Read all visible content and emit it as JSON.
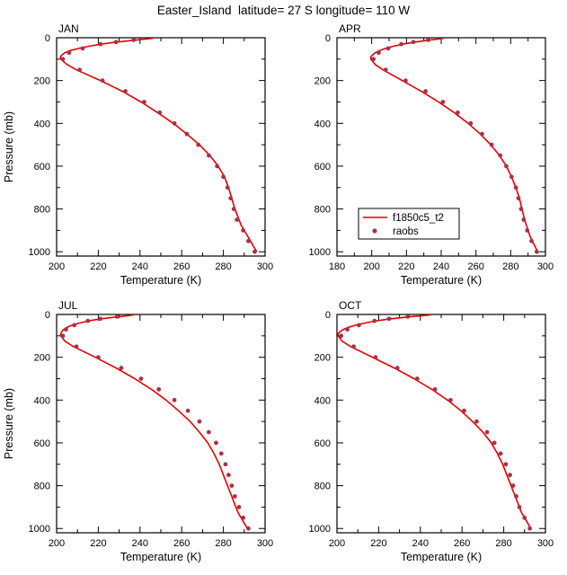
{
  "title": "Easter_Island  latitude= 27 S longitude= 110 W",
  "colors": {
    "model_line": "#e60000",
    "obs_dot": "#a8314e",
    "axis": "#000000",
    "background": "#ffffff"
  },
  "chart_data": {
    "type": "line",
    "title": "Easter_Island  latitude= 27 S longitude= 110 W",
    "legend": {
      "position": "inside-apr-panel",
      "entries": [
        {
          "type": "line",
          "label": "f1850c5_t2"
        },
        {
          "type": "marker",
          "label": "raobs"
        }
      ]
    },
    "panels": [
      {
        "id": "jan",
        "label": "JAN",
        "show_legend": false,
        "show_y_title": true,
        "x_axis": {
          "title": "Temperature (K)",
          "min": 200,
          "max": 300,
          "major_step": 20,
          "minor_step": 10
        },
        "y_axis": {
          "title": "Pressure (mb)",
          "min": 0,
          "max": 1020,
          "tick_max": 1000,
          "major_step": 200,
          "minor_step": 100
        },
        "model": {
          "name": "f1850c5_t2",
          "points": [
            [
              1000,
              296
            ],
            [
              975,
              294.5
            ],
            [
              950,
              293
            ],
            [
              925,
              291.5
            ],
            [
              900,
              290
            ],
            [
              875,
              288.5
            ],
            [
              850,
              287.5
            ],
            [
              800,
              285.5
            ],
            [
              750,
              284
            ],
            [
              700,
              282.5
            ],
            [
              650,
              280.5
            ],
            [
              600,
              277.5
            ],
            [
              550,
              273.5
            ],
            [
              500,
              268.5
            ],
            [
              450,
              262.5
            ],
            [
              400,
              256
            ],
            [
              350,
              248.5
            ],
            [
              300,
              240.5
            ],
            [
              250,
              231.5
            ],
            [
              200,
              221
            ],
            [
              150,
              209.5
            ],
            [
              125,
              205
            ],
            [
              100,
              202
            ],
            [
              90,
              201.8
            ],
            [
              80,
              202.5
            ],
            [
              70,
              204
            ],
            [
              60,
              206.5
            ],
            [
              50,
              210.5
            ],
            [
              40,
              215.5
            ],
            [
              30,
              221.5
            ],
            [
              20,
              229
            ],
            [
              10,
              238.5
            ],
            [
              5,
              244
            ],
            [
              2,
              246.5
            ]
          ]
        },
        "obs": {
          "name": "raobs",
          "points": [
            [
              1000,
              295
            ],
            [
              950,
              292
            ],
            [
              900,
              289.5
            ],
            [
              850,
              286.5
            ],
            [
              800,
              285
            ],
            [
              750,
              283.5
            ],
            [
              700,
              282
            ],
            [
              650,
              280
            ],
            [
              600,
              277
            ],
            [
              550,
              273
            ],
            [
              500,
              268
            ],
            [
              450,
              262.5
            ],
            [
              400,
              256.5
            ],
            [
              350,
              249.5
            ],
            [
              300,
              242
            ],
            [
              250,
              233
            ],
            [
              200,
              222
            ],
            [
              150,
              211
            ],
            [
              100,
              203
            ],
            [
              70,
              206
            ],
            [
              50,
              212.5
            ],
            [
              30,
              221
            ],
            [
              20,
              228.5
            ],
            [
              10,
              237
            ]
          ]
        }
      },
      {
        "id": "apr",
        "label": "APR",
        "show_legend": true,
        "show_y_title": false,
        "x_axis": {
          "title": "Temperature (K)",
          "min": 180,
          "max": 300,
          "major_step": 20,
          "minor_step": 10
        },
        "y_axis": {
          "title": "Pressure (mb)",
          "min": 0,
          "max": 1020,
          "tick_max": 1000,
          "major_step": 200,
          "minor_step": 100
        },
        "model": {
          "name": "f1850c5_t2",
          "points": [
            [
              1000,
              295.5
            ],
            [
              975,
              294
            ],
            [
              950,
              292.5
            ],
            [
              925,
              291
            ],
            [
              900,
              290
            ],
            [
              875,
              289
            ],
            [
              850,
              288
            ],
            [
              800,
              286.5
            ],
            [
              750,
              285
            ],
            [
              700,
              283
            ],
            [
              650,
              280.5
            ],
            [
              600,
              277.5
            ],
            [
              550,
              273.5
            ],
            [
              500,
              268.5
            ],
            [
              450,
              262.5
            ],
            [
              400,
              255.5
            ],
            [
              350,
              247.5
            ],
            [
              300,
              238.5
            ],
            [
              250,
              228.5
            ],
            [
              200,
              217.5
            ],
            [
              150,
              206.5
            ],
            [
              125,
              202
            ],
            [
              100,
              199.5
            ],
            [
              90,
              199.5
            ],
            [
              80,
              200.5
            ],
            [
              70,
              202
            ],
            [
              60,
              204.5
            ],
            [
              50,
              208
            ],
            [
              40,
              212.5
            ],
            [
              30,
              218
            ],
            [
              20,
              225
            ],
            [
              10,
              234
            ],
            [
              5,
              239.5
            ],
            [
              2,
              241.5
            ]
          ]
        },
        "obs": {
          "name": "raobs",
          "points": [
            [
              1000,
              295
            ],
            [
              950,
              292
            ],
            [
              900,
              289.5
            ],
            [
              850,
              287.5
            ],
            [
              800,
              286
            ],
            [
              750,
              284.5
            ],
            [
              700,
              283
            ],
            [
              650,
              280.5
            ],
            [
              600,
              277.5
            ],
            [
              550,
              274
            ],
            [
              500,
              269
            ],
            [
              450,
              263.5
            ],
            [
              400,
              257
            ],
            [
              350,
              249.5
            ],
            [
              300,
              241
            ],
            [
              250,
              231
            ],
            [
              200,
              219.5
            ],
            [
              150,
              208
            ],
            [
              100,
              201
            ],
            [
              70,
              204
            ],
            [
              50,
              209.5
            ],
            [
              30,
              217
            ],
            [
              20,
              224
            ],
            [
              10,
              232.5
            ]
          ]
        }
      },
      {
        "id": "jul",
        "label": "JUL",
        "show_legend": false,
        "show_y_title": true,
        "x_axis": {
          "title": "Temperature (K)",
          "min": 200,
          "max": 300,
          "major_step": 20,
          "minor_step": 10
        },
        "y_axis": {
          "title": "Pressure (mb)",
          "min": 0,
          "max": 1020,
          "tick_max": 1000,
          "major_step": 200,
          "minor_step": 100
        },
        "model": {
          "name": "f1850c5_t2",
          "points": [
            [
              1000,
              291.5
            ],
            [
              975,
              290
            ],
            [
              950,
              288.5
            ],
            [
              925,
              287
            ],
            [
              900,
              286
            ],
            [
              875,
              285
            ],
            [
              850,
              284
            ],
            [
              800,
              282
            ],
            [
              750,
              280
            ],
            [
              700,
              278
            ],
            [
              650,
              275.5
            ],
            [
              600,
              272.5
            ],
            [
              550,
              268.5
            ],
            [
              500,
              264
            ],
            [
              450,
              258.5
            ],
            [
              400,
              252.5
            ],
            [
              350,
              245.5
            ],
            [
              300,
              237.5
            ],
            [
              250,
              228.5
            ],
            [
              200,
              218.5
            ],
            [
              150,
              208
            ],
            [
              125,
              204
            ],
            [
              100,
              202
            ],
            [
              90,
              202
            ],
            [
              80,
              202.5
            ],
            [
              70,
              203.5
            ],
            [
              60,
              205
            ],
            [
              50,
              207.5
            ],
            [
              40,
              211
            ],
            [
              30,
              215.5
            ],
            [
              20,
              221.5
            ],
            [
              10,
              230
            ],
            [
              5,
              235
            ],
            [
              2,
              237
            ]
          ]
        },
        "obs": {
          "name": "raobs",
          "points": [
            [
              1000,
              292
            ],
            [
              950,
              289.5
            ],
            [
              900,
              287.5
            ],
            [
              850,
              285.5
            ],
            [
              800,
              284
            ],
            [
              750,
              282.5
            ],
            [
              700,
              281
            ],
            [
              650,
              279
            ],
            [
              600,
              276.5
            ],
            [
              550,
              273
            ],
            [
              500,
              268.5
            ],
            [
              450,
              263
            ],
            [
              400,
              256.5
            ],
            [
              350,
              249
            ],
            [
              300,
              240.5
            ],
            [
              250,
              231
            ],
            [
              200,
              220
            ],
            [
              150,
              209.5
            ],
            [
              100,
              203
            ],
            [
              70,
              204.5
            ],
            [
              50,
              208.5
            ],
            [
              30,
              215
            ],
            [
              20,
              221
            ],
            [
              10,
              229
            ]
          ]
        }
      },
      {
        "id": "oct",
        "label": "OCT",
        "show_legend": false,
        "show_y_title": false,
        "x_axis": {
          "title": "Temperature (K)",
          "min": 200,
          "max": 300,
          "major_step": 20,
          "minor_step": 10
        },
        "y_axis": {
          "title": "Pressure (mb)",
          "min": 0,
          "max": 1020,
          "tick_max": 1000,
          "major_step": 200,
          "minor_step": 100
        },
        "model": {
          "name": "f1850c5_t2",
          "points": [
            [
              1000,
              293
            ],
            [
              975,
              291.5
            ],
            [
              950,
              290
            ],
            [
              925,
              288.5
            ],
            [
              900,
              287.5
            ],
            [
              875,
              286.5
            ],
            [
              850,
              285.5
            ],
            [
              800,
              283.5
            ],
            [
              750,
              281.5
            ],
            [
              700,
              279.5
            ],
            [
              650,
              277
            ],
            [
              600,
              274
            ],
            [
              550,
              270
            ],
            [
              500,
              265
            ],
            [
              450,
              259.5
            ],
            [
              400,
              253
            ],
            [
              350,
              245.5
            ],
            [
              300,
              237
            ],
            [
              250,
              227.5
            ],
            [
              200,
              217
            ],
            [
              150,
              206.5
            ],
            [
              125,
              202.5
            ],
            [
              100,
              200.5
            ],
            [
              90,
              200.5
            ],
            [
              80,
              201.5
            ],
            [
              70,
              203
            ],
            [
              60,
              205.5
            ],
            [
              50,
              209
            ],
            [
              40,
              213.5
            ],
            [
              30,
              219
            ],
            [
              20,
              226
            ],
            [
              10,
              235.5
            ],
            [
              5,
              242
            ],
            [
              2,
              245
            ]
          ]
        },
        "obs": {
          "name": "raobs",
          "points": [
            [
              1000,
              292.5
            ],
            [
              950,
              290
            ],
            [
              900,
              287.5
            ],
            [
              850,
              286
            ],
            [
              800,
              284.5
            ],
            [
              750,
              283
            ],
            [
              700,
              281
            ],
            [
              650,
              278.5
            ],
            [
              600,
              275.5
            ],
            [
              550,
              272
            ],
            [
              500,
              267
            ],
            [
              450,
              261
            ],
            [
              400,
              254.5
            ],
            [
              350,
              247
            ],
            [
              300,
              238.5
            ],
            [
              250,
              229
            ],
            [
              200,
              218.5
            ],
            [
              150,
              208
            ],
            [
              100,
              202
            ],
            [
              70,
              205
            ],
            [
              50,
              210.5
            ],
            [
              30,
              218
            ],
            [
              20,
              225
            ],
            [
              10,
              234
            ]
          ]
        }
      }
    ]
  }
}
